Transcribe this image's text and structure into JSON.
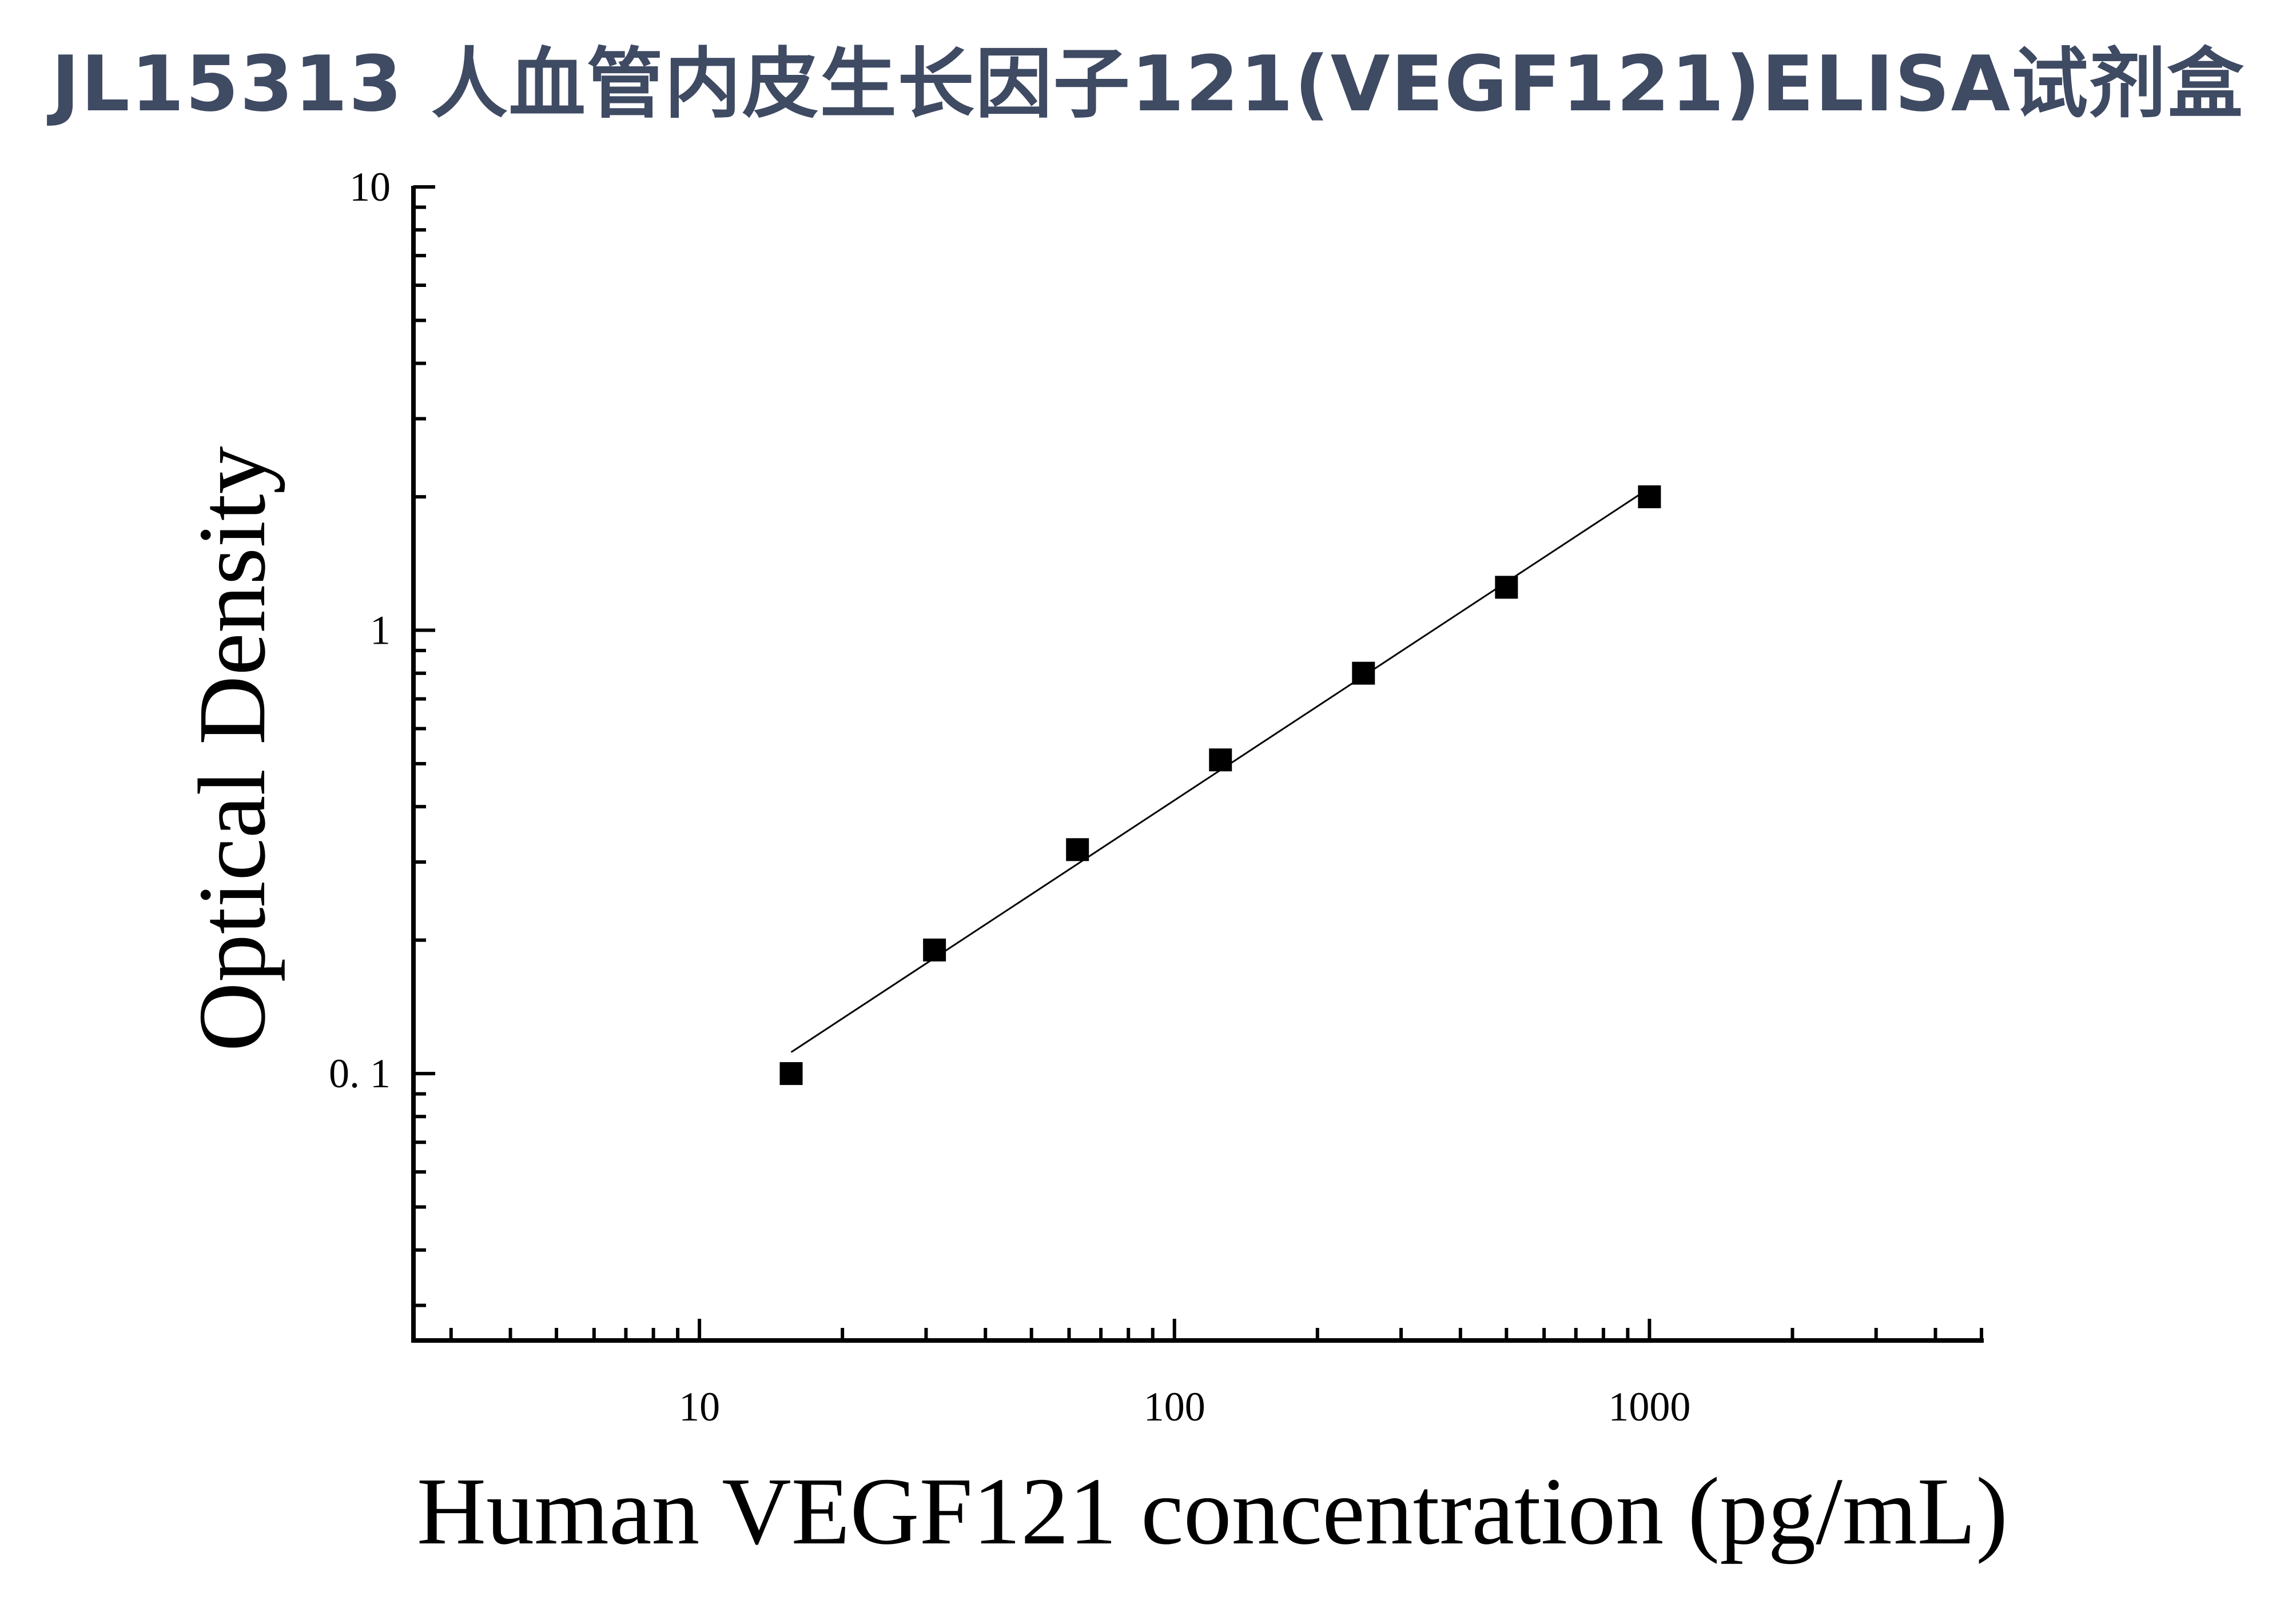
{
  "title": "JL15313 人血管内皮生长因子121(VEGF121)ELISA试剂盒",
  "chart_data": {
    "type": "scatter",
    "xlabel": "Human VEGF121 concentration (pg/mL)",
    "ylabel": "Optical Density",
    "x_scale": "log",
    "y_scale": "log",
    "xlim": [
      2.5,
      5000
    ],
    "ylim": [
      0.025,
      10
    ],
    "x_ticks": [
      {
        "value": 10,
        "label": "10"
      },
      {
        "value": 100,
        "label": "100"
      },
      {
        "value": 1000,
        "label": "1000"
      }
    ],
    "y_ticks": [
      {
        "value": 0.1,
        "label": "0. 1"
      },
      {
        "value": 1,
        "label": "1"
      },
      {
        "value": 10,
        "label": "10"
      }
    ],
    "grid": false,
    "series": [
      {
        "marker": "square",
        "color": "#000000",
        "x": [
          15.6,
          31.25,
          62.5,
          125,
          250,
          500,
          1000
        ],
        "y": [
          0.1,
          0.19,
          0.32,
          0.51,
          0.8,
          1.25,
          2.0
        ]
      }
    ],
    "fit_line": {
      "type": "power",
      "color": "#000000",
      "x_start": 15.6,
      "x_end": 1000
    }
  }
}
